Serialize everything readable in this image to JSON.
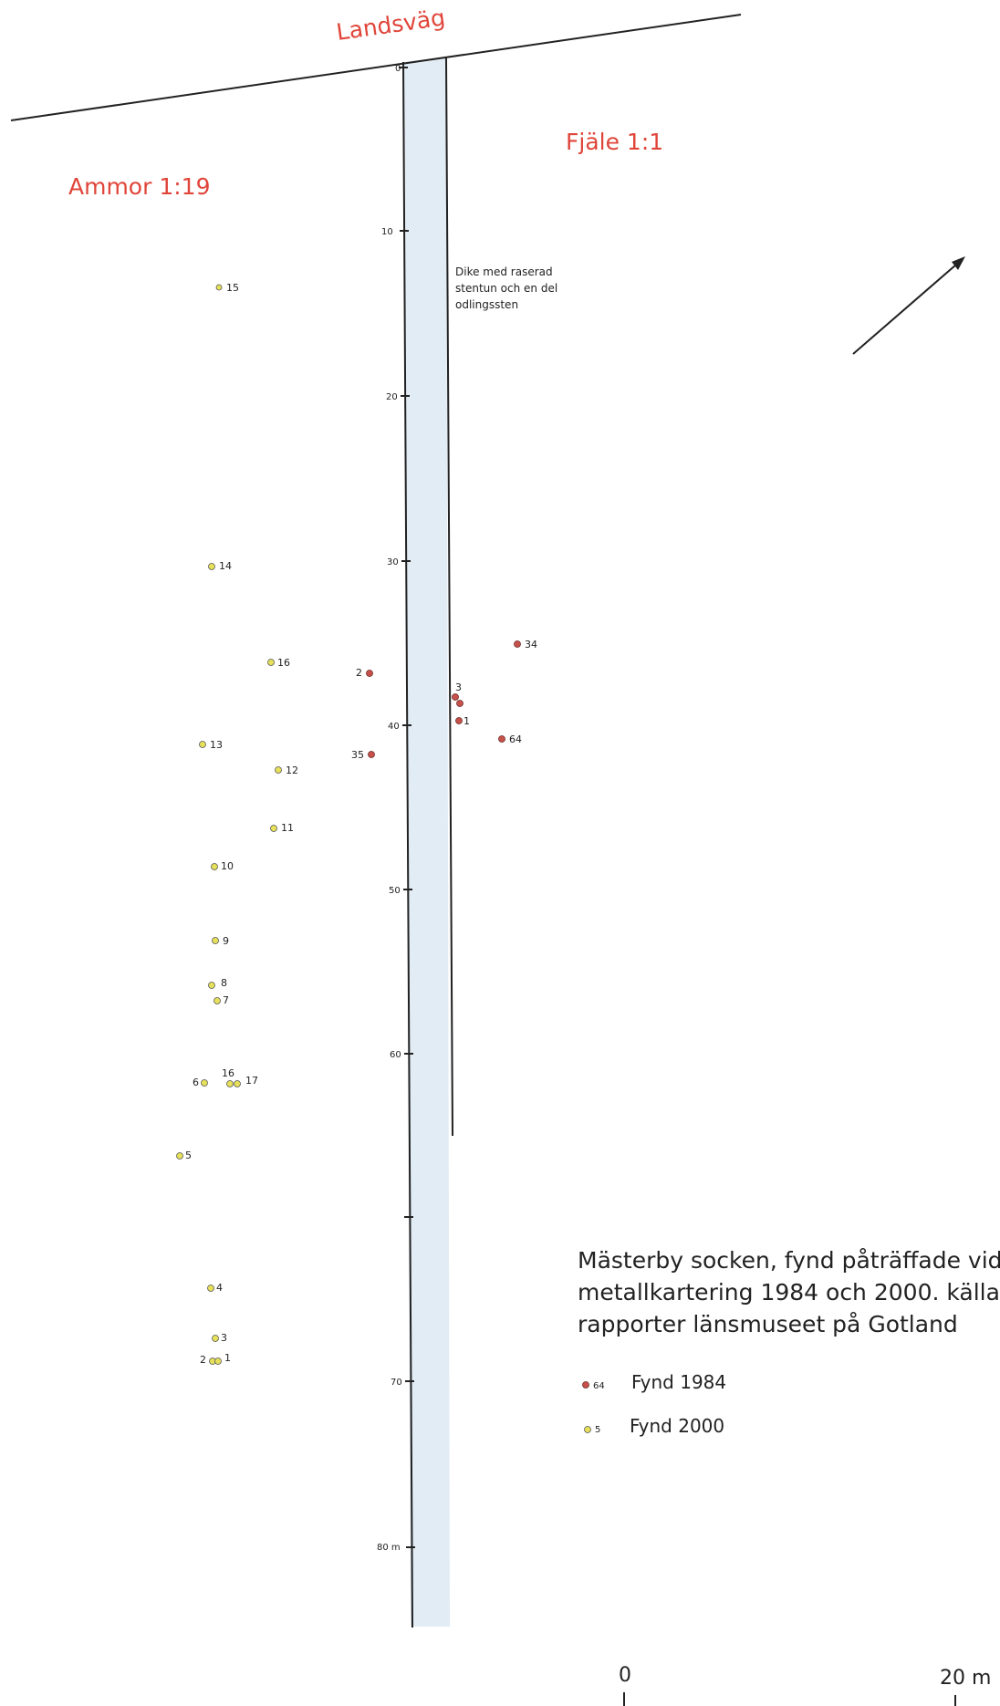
{
  "labels": {
    "road": "Landsväg",
    "property_left": "Ammor 1:19",
    "property_right": "Fjäle 1:1",
    "ditch_note": [
      "Dike med raserad",
      "stentun och en del",
      "odlingssten"
    ]
  },
  "chainage_ticks": [
    {
      "value": 0,
      "label": "0"
    },
    {
      "value": 10,
      "label": "10"
    },
    {
      "value": 20,
      "label": "20"
    },
    {
      "value": 30,
      "label": "30"
    },
    {
      "value": 40,
      "label": "40"
    },
    {
      "value": 50,
      "label": "50"
    },
    {
      "value": 60,
      "label": "60"
    },
    {
      "value": 70,
      "label": "70"
    },
    {
      "value": 80,
      "label": "80 m"
    }
  ],
  "caption": [
    "Mästerby socken, fynd påträffade vid",
    "metallkartering 1984 och 2000. källa",
    "rapporter länsmuseet på Gotland"
  ],
  "legend": {
    "items": [
      {
        "number": "64",
        "label": "Fynd 1984",
        "color": "#c8504a"
      },
      {
        "number": "5",
        "label": "Fynd 2000",
        "color": "#e6e05a"
      }
    ]
  },
  "scale_bar": {
    "start_label": "0",
    "end_label": "20 m"
  },
  "north_arrow": {
    "icon": "north-arrow-icon"
  },
  "finds_1984": [
    {
      "id": "34",
      "label": "34"
    },
    {
      "id": "2",
      "label": "2"
    },
    {
      "id": "3",
      "label": "3"
    },
    {
      "id": "1",
      "label": "1"
    },
    {
      "id": "64",
      "label": "64"
    },
    {
      "id": "35",
      "label": "35"
    }
  ],
  "finds_2000": [
    {
      "id": "15",
      "label": "15"
    },
    {
      "id": "14",
      "label": "14"
    },
    {
      "id": "16",
      "label": "16"
    },
    {
      "id": "13",
      "label": "13"
    },
    {
      "id": "12",
      "label": "12"
    },
    {
      "id": "11",
      "label": "11"
    },
    {
      "id": "10",
      "label": "10"
    },
    {
      "id": "9",
      "label": "9"
    },
    {
      "id": "8",
      "label": "8"
    },
    {
      "id": "7",
      "label": "7"
    },
    {
      "id": "6",
      "label": "6"
    },
    {
      "id": "16b",
      "label": "16"
    },
    {
      "id": "17",
      "label": "17"
    },
    {
      "id": "5",
      "label": "5"
    },
    {
      "id": "4",
      "label": "4"
    },
    {
      "id": "3",
      "label": "3"
    },
    {
      "id": "2",
      "label": "2"
    },
    {
      "id": "1",
      "label": "1"
    }
  ],
  "colors": {
    "road": "#222222",
    "ditch_fill": "#e2ecf5",
    "find_1984": "#c8504a",
    "find_2000": "#e6e05a",
    "outline": "#333333"
  }
}
